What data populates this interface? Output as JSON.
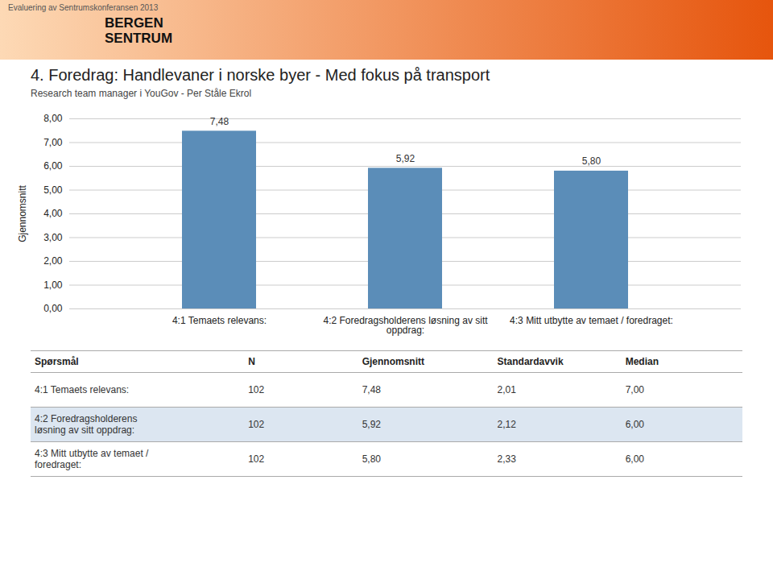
{
  "chart_data": {
    "type": "bar",
    "header_text": "Evaluering av Sentrumskonferansen 2013",
    "logo_text": "BERGEN\nSENTRUM",
    "title": "4. Foredrag: Handlevaner i norske byer - Med fokus på transport",
    "subtitle": "Research team manager i YouGov - Per Ståle Ekrol",
    "categories": [
      "4:1 Temaets relevans:",
      "4:2 Foredragsholderens løsning av sitt\noppdrag:",
      "4:3 Mitt utbytte av temaet / foredraget:"
    ],
    "values": [
      7.48,
      5.92,
      5.8
    ],
    "value_labels": [
      "7,48",
      "5,92",
      "5,80"
    ],
    "data_labels": true,
    "color": "#5b8db8",
    "ylabel": "Gjennomsnitt",
    "ylim": [
      0,
      8.0
    ],
    "yticks": [
      {
        "value": 0.0,
        "label": "0,00"
      },
      {
        "value": 1.0,
        "label": "1,00"
      },
      {
        "value": 2.0,
        "label": "2,00"
      },
      {
        "value": 3.0,
        "label": "3,00"
      },
      {
        "value": 4.0,
        "label": "4,00"
      },
      {
        "value": 5.0,
        "label": "5,00"
      },
      {
        "value": 6.0,
        "label": "6,00"
      },
      {
        "value": 7.0,
        "label": "7,00"
      },
      {
        "value": 8.0,
        "label": "8,00"
      }
    ],
    "grid": true,
    "table_headers": [
      "Spørsmål",
      "N",
      "Gjennomsnitt",
      "Standardavvik",
      "Median"
    ],
    "table_rows": [
      [
        "4:1 Temaets relevans:",
        "102",
        "7,48",
        "2,01",
        "7,00"
      ],
      [
        "4:2 Foredragsholderens\nløsning av sitt oppdrag:",
        "102",
        "5,92",
        "2,12",
        "6,00"
      ],
      [
        "4:3 Mitt utbytte av temaet /\nforedraget:",
        "102",
        "5,80",
        "2,33",
        "6,00"
      ]
    ],
    "table_row_colors": [
      "#ffffff",
      "#dce6f1",
      "#ffffff"
    ]
  }
}
